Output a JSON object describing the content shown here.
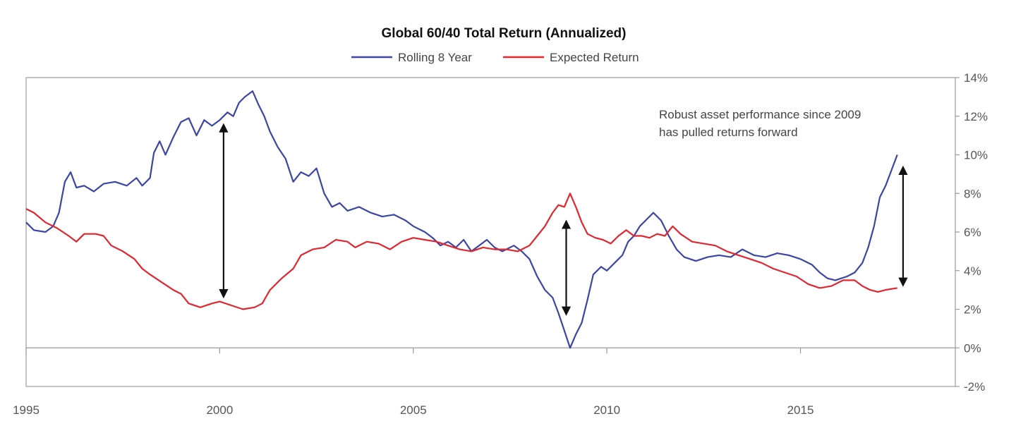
{
  "chart_data": {
    "type": "line",
    "title": "Global 60/40 Total Return (Annualized)",
    "xlabel": "",
    "ylabel": "",
    "xlim": [
      1995,
      2019
    ],
    "ylim": [
      -2,
      14
    ],
    "x_ticks": [
      1995,
      2000,
      2005,
      2010,
      2015
    ],
    "x_tick_labels": [
      "1995",
      "2000",
      "2005",
      "2010",
      "2015"
    ],
    "y_ticks": [
      -2,
      0,
      2,
      4,
      6,
      8,
      10,
      12,
      14
    ],
    "y_tick_labels": [
      "-2%",
      "0%",
      "2%",
      "4%",
      "6%",
      "8%",
      "10%",
      "12%",
      "14%"
    ],
    "y_axis_side": "right",
    "grid": false,
    "legend": {
      "placement": "top-center"
    },
    "series": [
      {
        "name": "Rolling 8 Year",
        "color": "#3b45a6",
        "points": [
          [
            1995.0,
            6.5
          ],
          [
            1995.2,
            6.1
          ],
          [
            1995.5,
            6.0
          ],
          [
            1995.7,
            6.3
          ],
          [
            1995.85,
            7.0
          ],
          [
            1996.0,
            8.6
          ],
          [
            1996.15,
            9.1
          ],
          [
            1996.3,
            8.3
          ],
          [
            1996.5,
            8.4
          ],
          [
            1996.75,
            8.1
          ],
          [
            1997.0,
            8.5
          ],
          [
            1997.3,
            8.6
          ],
          [
            1997.6,
            8.4
          ],
          [
            1997.85,
            8.8
          ],
          [
            1998.0,
            8.4
          ],
          [
            1998.2,
            8.8
          ],
          [
            1998.3,
            10.1
          ],
          [
            1998.45,
            10.7
          ],
          [
            1998.6,
            10.0
          ],
          [
            1998.8,
            10.9
          ],
          [
            1999.0,
            11.7
          ],
          [
            1999.2,
            11.9
          ],
          [
            1999.4,
            11.0
          ],
          [
            1999.6,
            11.8
          ],
          [
            1999.8,
            11.5
          ],
          [
            2000.0,
            11.8
          ],
          [
            2000.2,
            12.2
          ],
          [
            2000.35,
            12.0
          ],
          [
            2000.5,
            12.7
          ],
          [
            2000.65,
            13.0
          ],
          [
            2000.85,
            13.3
          ],
          [
            2001.0,
            12.6
          ],
          [
            2001.15,
            12.0
          ],
          [
            2001.3,
            11.2
          ],
          [
            2001.5,
            10.4
          ],
          [
            2001.7,
            9.8
          ],
          [
            2001.9,
            8.6
          ],
          [
            2002.1,
            9.1
          ],
          [
            2002.3,
            8.9
          ],
          [
            2002.5,
            9.3
          ],
          [
            2002.7,
            8.0
          ],
          [
            2002.9,
            7.3
          ],
          [
            2003.1,
            7.5
          ],
          [
            2003.3,
            7.1
          ],
          [
            2003.6,
            7.3
          ],
          [
            2003.9,
            7.0
          ],
          [
            2004.2,
            6.8
          ],
          [
            2004.5,
            6.9
          ],
          [
            2004.8,
            6.6
          ],
          [
            2005.0,
            6.3
          ],
          [
            2005.3,
            6.0
          ],
          [
            2005.5,
            5.7
          ],
          [
            2005.7,
            5.3
          ],
          [
            2005.9,
            5.5
          ],
          [
            2006.1,
            5.2
          ],
          [
            2006.3,
            5.6
          ],
          [
            2006.5,
            5.0
          ],
          [
            2006.7,
            5.3
          ],
          [
            2006.9,
            5.6
          ],
          [
            2007.1,
            5.2
          ],
          [
            2007.3,
            5.0
          ],
          [
            2007.6,
            5.3
          ],
          [
            2007.8,
            5.0
          ],
          [
            2008.0,
            4.6
          ],
          [
            2008.2,
            3.7
          ],
          [
            2008.4,
            3.0
          ],
          [
            2008.6,
            2.6
          ],
          [
            2008.75,
            1.8
          ],
          [
            2008.9,
            0.9
          ],
          [
            2009.05,
            0.0
          ],
          [
            2009.2,
            0.7
          ],
          [
            2009.35,
            1.3
          ],
          [
            2009.5,
            2.5
          ],
          [
            2009.65,
            3.8
          ],
          [
            2009.85,
            4.2
          ],
          [
            2010.0,
            4.0
          ],
          [
            2010.2,
            4.4
          ],
          [
            2010.4,
            4.8
          ],
          [
            2010.55,
            5.5
          ],
          [
            2010.7,
            5.8
          ],
          [
            2010.85,
            6.3
          ],
          [
            2011.0,
            6.6
          ],
          [
            2011.2,
            7.0
          ],
          [
            2011.4,
            6.6
          ],
          [
            2011.6,
            5.8
          ],
          [
            2011.8,
            5.1
          ],
          [
            2012.0,
            4.7
          ],
          [
            2012.3,
            4.5
          ],
          [
            2012.6,
            4.7
          ],
          [
            2012.9,
            4.8
          ],
          [
            2013.2,
            4.7
          ],
          [
            2013.5,
            5.1
          ],
          [
            2013.8,
            4.8
          ],
          [
            2014.1,
            4.7
          ],
          [
            2014.4,
            4.9
          ],
          [
            2014.7,
            4.8
          ],
          [
            2015.0,
            4.6
          ],
          [
            2015.3,
            4.3
          ],
          [
            2015.5,
            3.9
          ],
          [
            2015.7,
            3.6
          ],
          [
            2015.9,
            3.5
          ],
          [
            2016.2,
            3.7
          ],
          [
            2016.4,
            3.9
          ],
          [
            2016.6,
            4.4
          ],
          [
            2016.75,
            5.2
          ],
          [
            2016.9,
            6.3
          ],
          [
            2017.05,
            7.8
          ],
          [
            2017.2,
            8.4
          ],
          [
            2017.35,
            9.2
          ],
          [
            2017.5,
            10.0
          ]
        ]
      },
      {
        "name": "Expected Return",
        "color": "#e0262e",
        "points": [
          [
            1995.0,
            7.2
          ],
          [
            1995.2,
            7.0
          ],
          [
            1995.5,
            6.5
          ],
          [
            1995.8,
            6.2
          ],
          [
            1996.1,
            5.8
          ],
          [
            1996.3,
            5.5
          ],
          [
            1996.5,
            5.9
          ],
          [
            1996.8,
            5.9
          ],
          [
            1997.0,
            5.8
          ],
          [
            1997.2,
            5.3
          ],
          [
            1997.5,
            5.0
          ],
          [
            1997.8,
            4.6
          ],
          [
            1998.0,
            4.1
          ],
          [
            1998.2,
            3.8
          ],
          [
            1998.5,
            3.4
          ],
          [
            1998.8,
            3.0
          ],
          [
            1999.0,
            2.8
          ],
          [
            1999.2,
            2.3
          ],
          [
            1999.5,
            2.1
          ],
          [
            1999.8,
            2.3
          ],
          [
            2000.0,
            2.4
          ],
          [
            2000.3,
            2.2
          ],
          [
            2000.6,
            2.0
          ],
          [
            2000.9,
            2.1
          ],
          [
            2001.1,
            2.3
          ],
          [
            2001.3,
            3.0
          ],
          [
            2001.6,
            3.6
          ],
          [
            2001.9,
            4.1
          ],
          [
            2002.1,
            4.8
          ],
          [
            2002.4,
            5.1
          ],
          [
            2002.7,
            5.2
          ],
          [
            2003.0,
            5.6
          ],
          [
            2003.3,
            5.5
          ],
          [
            2003.5,
            5.2
          ],
          [
            2003.8,
            5.5
          ],
          [
            2004.1,
            5.4
          ],
          [
            2004.4,
            5.1
          ],
          [
            2004.7,
            5.5
          ],
          [
            2005.0,
            5.7
          ],
          [
            2005.3,
            5.6
          ],
          [
            2005.6,
            5.5
          ],
          [
            2005.9,
            5.3
          ],
          [
            2006.2,
            5.1
          ],
          [
            2006.5,
            5.0
          ],
          [
            2006.8,
            5.2
          ],
          [
            2007.1,
            5.1
          ],
          [
            2007.4,
            5.1
          ],
          [
            2007.7,
            5.0
          ],
          [
            2008.0,
            5.3
          ],
          [
            2008.2,
            5.8
          ],
          [
            2008.4,
            6.3
          ],
          [
            2008.6,
            7.0
          ],
          [
            2008.75,
            7.4
          ],
          [
            2008.9,
            7.3
          ],
          [
            2009.05,
            8.0
          ],
          [
            2009.2,
            7.3
          ],
          [
            2009.35,
            6.5
          ],
          [
            2009.5,
            5.9
          ],
          [
            2009.7,
            5.7
          ],
          [
            2009.9,
            5.6
          ],
          [
            2010.1,
            5.4
          ],
          [
            2010.3,
            5.8
          ],
          [
            2010.5,
            6.1
          ],
          [
            2010.7,
            5.8
          ],
          [
            2010.9,
            5.8
          ],
          [
            2011.1,
            5.7
          ],
          [
            2011.3,
            5.9
          ],
          [
            2011.5,
            5.8
          ],
          [
            2011.7,
            6.3
          ],
          [
            2011.9,
            5.9
          ],
          [
            2012.2,
            5.5
          ],
          [
            2012.5,
            5.4
          ],
          [
            2012.8,
            5.3
          ],
          [
            2013.1,
            5.0
          ],
          [
            2013.4,
            4.8
          ],
          [
            2013.7,
            4.6
          ],
          [
            2014.0,
            4.4
          ],
          [
            2014.3,
            4.1
          ],
          [
            2014.6,
            3.9
          ],
          [
            2014.9,
            3.7
          ],
          [
            2015.2,
            3.3
          ],
          [
            2015.5,
            3.1
          ],
          [
            2015.8,
            3.2
          ],
          [
            2016.1,
            3.5
          ],
          [
            2016.4,
            3.5
          ],
          [
            2016.6,
            3.2
          ],
          [
            2016.8,
            3.0
          ],
          [
            2017.0,
            2.9
          ],
          [
            2017.2,
            3.0
          ],
          [
            2017.5,
            3.1
          ]
        ]
      }
    ],
    "annotations": [
      {
        "type": "double-arrow",
        "x": 2000.1,
        "y_from": 2.8,
        "y_to": 11.4
      },
      {
        "type": "double-arrow",
        "x": 2008.95,
        "y_from": 1.9,
        "y_to": 6.4
      },
      {
        "type": "double-arrow",
        "x": 2017.65,
        "y_from": 3.4,
        "y_to": 9.2
      },
      {
        "type": "text",
        "lines": [
          "Robust asset performance since 2009",
          "has pulled returns forward"
        ]
      }
    ]
  }
}
